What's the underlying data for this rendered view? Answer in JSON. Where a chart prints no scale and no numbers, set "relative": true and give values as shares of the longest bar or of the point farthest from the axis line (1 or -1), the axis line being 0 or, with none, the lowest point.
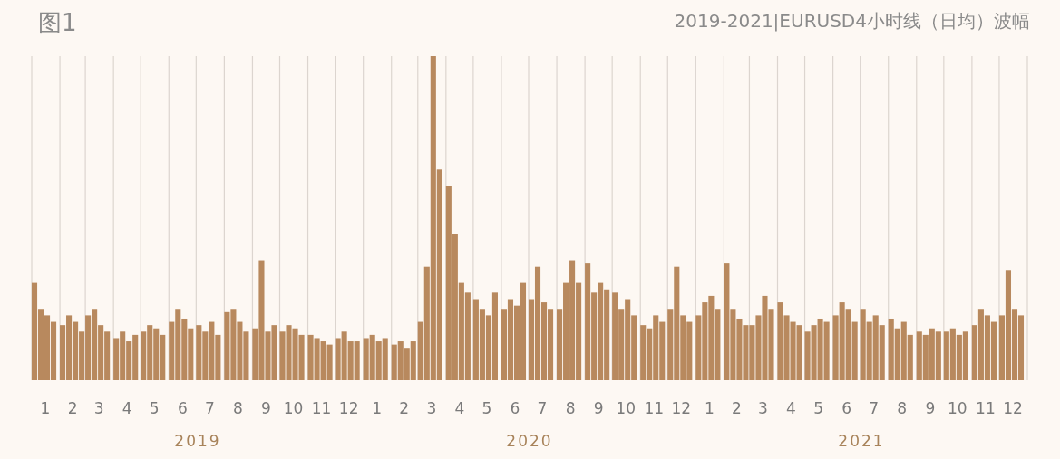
{
  "chart_data": {
    "type": "bar",
    "relative": true,
    "grid": "x",
    "color": "#b8895e",
    "title": "图1",
    "subtitle": "2019-2021|EURUSD4小时线（日均）波幅",
    "x": [
      "2019-01-04",
      "2019-01-11",
      "2019-01-18",
      "2019-01-25",
      "2019-02-04",
      "2019-02-11",
      "2019-02-18",
      "2019-02-25",
      "2019-03-04",
      "2019-03-11",
      "2019-03-18",
      "2019-03-25",
      "2019-04-04",
      "2019-04-11",
      "2019-04-18",
      "2019-04-25",
      "2019-05-04",
      "2019-05-11",
      "2019-05-18",
      "2019-05-25",
      "2019-06-04",
      "2019-06-11",
      "2019-06-18",
      "2019-06-25",
      "2019-07-04",
      "2019-07-11",
      "2019-07-18",
      "2019-07-25",
      "2019-08-04",
      "2019-08-11",
      "2019-08-18",
      "2019-08-25",
      "2019-09-04",
      "2019-09-11",
      "2019-09-18",
      "2019-09-25",
      "2019-10-04",
      "2019-10-11",
      "2019-10-18",
      "2019-10-25",
      "2019-11-04",
      "2019-11-11",
      "2019-11-18",
      "2019-11-25",
      "2019-12-04",
      "2019-12-11",
      "2019-12-18",
      "2019-12-25",
      "2020-01-04",
      "2020-01-11",
      "2020-01-18",
      "2020-01-25",
      "2020-02-04",
      "2020-02-11",
      "2020-02-18",
      "2020-02-25",
      "2020-03-04",
      "2020-03-11",
      "2020-03-18",
      "2020-03-25",
      "2020-04-04",
      "2020-04-11",
      "2020-04-18",
      "2020-04-25",
      "2020-05-04",
      "2020-05-11",
      "2020-05-18",
      "2020-05-25",
      "2020-06-04",
      "2020-06-11",
      "2020-06-18",
      "2020-06-25",
      "2020-07-04",
      "2020-07-11",
      "2020-07-18",
      "2020-07-25",
      "2020-08-04",
      "2020-08-11",
      "2020-08-18",
      "2020-08-25",
      "2020-09-04",
      "2020-09-11",
      "2020-09-18",
      "2020-09-25",
      "2020-10-04",
      "2020-10-11",
      "2020-10-18",
      "2020-10-25",
      "2020-11-04",
      "2020-11-11",
      "2020-11-18",
      "2020-11-25",
      "2020-12-04",
      "2020-12-11",
      "2020-12-18",
      "2020-12-25",
      "2021-01-04",
      "2021-01-11",
      "2021-01-18",
      "2021-01-25",
      "2021-02-04",
      "2021-02-11",
      "2021-02-18",
      "2021-02-25",
      "2021-03-04",
      "2021-03-11",
      "2021-03-18",
      "2021-03-25",
      "2021-04-04",
      "2021-04-11",
      "2021-04-18",
      "2021-04-25",
      "2021-05-04",
      "2021-05-11",
      "2021-05-18",
      "2021-05-25",
      "2021-06-04",
      "2021-06-11",
      "2021-06-18",
      "2021-06-25",
      "2021-07-04",
      "2021-07-11",
      "2021-07-18",
      "2021-07-25",
      "2021-08-04",
      "2021-08-11",
      "2021-08-18",
      "2021-08-25",
      "2021-09-04",
      "2021-09-11",
      "2021-09-18",
      "2021-09-25",
      "2021-10-04",
      "2021-10-11",
      "2021-10-18",
      "2021-10-25",
      "2021-11-04",
      "2021-11-11",
      "2021-11-18",
      "2021-11-25",
      "2021-12-04",
      "2021-12-11",
      "2021-12-18",
      "2021-12-25"
    ],
    "values": [
      0.3,
      0.22,
      0.2,
      0.18,
      0.17,
      0.2,
      0.18,
      0.15,
      0.2,
      0.22,
      0.17,
      0.15,
      0.13,
      0.15,
      0.12,
      0.14,
      0.15,
      0.17,
      0.16,
      0.14,
      0.18,
      0.22,
      0.19,
      0.16,
      0.17,
      0.15,
      0.18,
      0.14,
      0.21,
      0.22,
      0.18,
      0.15,
      0.16,
      0.37,
      0.15,
      0.17,
      0.15,
      0.17,
      0.16,
      0.14,
      0.14,
      0.13,
      0.12,
      0.11,
      0.13,
      0.15,
      0.12,
      0.12,
      0.13,
      0.14,
      0.12,
      0.13,
      0.11,
      0.12,
      0.1,
      0.12,
      0.18,
      0.35,
      1.0,
      0.65,
      0.6,
      0.45,
      0.3,
      0.27,
      0.25,
      0.22,
      0.2,
      0.27,
      0.22,
      0.25,
      0.23,
      0.3,
      0.25,
      0.35,
      0.24,
      0.22,
      0.22,
      0.3,
      0.37,
      0.3,
      0.36,
      0.27,
      0.3,
      0.28,
      0.27,
      0.22,
      0.25,
      0.2,
      0.17,
      0.16,
      0.2,
      0.18,
      0.22,
      0.35,
      0.2,
      0.18,
      0.2,
      0.24,
      0.26,
      0.22,
      0.36,
      0.22,
      0.19,
      0.17,
      0.17,
      0.2,
      0.26,
      0.22,
      0.24,
      0.2,
      0.18,
      0.17,
      0.15,
      0.17,
      0.19,
      0.18,
      0.2,
      0.24,
      0.22,
      0.18,
      0.22,
      0.18,
      0.2,
      0.17,
      0.19,
      0.16,
      0.18,
      0.14,
      0.15,
      0.14,
      0.16,
      0.15,
      0.15,
      0.16,
      0.14,
      0.15,
      0.17,
      0.22,
      0.2,
      0.18,
      0.2,
      0.34,
      0.22,
      0.2
    ],
    "xlim": [
      "2019-01-01",
      "2022-01-01"
    ],
    "xticks": [
      {
        "value": "2019-01-01",
        "label": null
      },
      {
        "value": "2019-01-16",
        "label": "1"
      },
      {
        "value": "2019-02-01",
        "label": null
      },
      {
        "value": "2019-02-15",
        "label": "2"
      },
      {
        "value": "2019-03-01",
        "label": null
      },
      {
        "value": "2019-03-16",
        "label": "3"
      },
      {
        "value": "2019-04-01",
        "label": null
      },
      {
        "value": "2019-04-16",
        "label": "4"
      },
      {
        "value": "2019-05-01",
        "label": null
      },
      {
        "value": "2019-05-16",
        "label": "5"
      },
      {
        "value": "2019-06-01",
        "label": null
      },
      {
        "value": "2019-06-16",
        "label": "6"
      },
      {
        "value": "2019-07-01",
        "label": null
      },
      {
        "value": "2019-07-16",
        "label": "7"
      },
      {
        "value": "2019-08-01",
        "label": null
      },
      {
        "value": "2019-08-16",
        "label": "8"
      },
      {
        "value": "2019-09-01",
        "label": null
      },
      {
        "value": "2019-09-16",
        "label": "9"
      },
      {
        "value": "2019-10-01",
        "label": null
      },
      {
        "value": "2019-10-16",
        "label": "10"
      },
      {
        "value": "2019-11-01",
        "label": null
      },
      {
        "value": "2019-11-16",
        "label": "11"
      },
      {
        "value": "2019-12-01",
        "label": null
      },
      {
        "value": "2019-12-16",
        "label": "12"
      },
      {
        "value": "2020-01-01",
        "label": null
      },
      {
        "value": "2020-01-16",
        "label": "1"
      },
      {
        "value": "2020-02-01",
        "label": null
      },
      {
        "value": "2020-02-15",
        "label": "2"
      },
      {
        "value": "2020-03-01",
        "label": null
      },
      {
        "value": "2020-03-16",
        "label": "3"
      },
      {
        "value": "2020-04-01",
        "label": null
      },
      {
        "value": "2020-04-16",
        "label": "4"
      },
      {
        "value": "2020-05-01",
        "label": null
      },
      {
        "value": "2020-05-16",
        "label": "5"
      },
      {
        "value": "2020-06-01",
        "label": null
      },
      {
        "value": "2020-06-16",
        "label": "6"
      },
      {
        "value": "2020-07-01",
        "label": null
      },
      {
        "value": "2020-07-16",
        "label": "7"
      },
      {
        "value": "2020-08-01",
        "label": null
      },
      {
        "value": "2020-08-16",
        "label": "8"
      },
      {
        "value": "2020-09-01",
        "label": null
      },
      {
        "value": "2020-09-16",
        "label": "9"
      },
      {
        "value": "2020-10-01",
        "label": null
      },
      {
        "value": "2020-10-16",
        "label": "10"
      },
      {
        "value": "2020-11-01",
        "label": null
      },
      {
        "value": "2020-11-16",
        "label": "11"
      },
      {
        "value": "2020-12-01",
        "label": null
      },
      {
        "value": "2020-12-16",
        "label": "12"
      },
      {
        "value": "2021-01-01",
        "label": null
      },
      {
        "value": "2021-01-16",
        "label": "1"
      },
      {
        "value": "2021-02-01",
        "label": null
      },
      {
        "value": "2021-02-15",
        "label": "2"
      },
      {
        "value": "2021-03-01",
        "label": null
      },
      {
        "value": "2021-03-16",
        "label": "3"
      },
      {
        "value": "2021-04-01",
        "label": null
      },
      {
        "value": "2021-04-16",
        "label": "4"
      },
      {
        "value": "2021-05-01",
        "label": null
      },
      {
        "value": "2021-05-16",
        "label": "5"
      },
      {
        "value": "2021-06-01",
        "label": null
      },
      {
        "value": "2021-06-16",
        "label": "6"
      },
      {
        "value": "2021-07-01",
        "label": null
      },
      {
        "value": "2021-07-16",
        "label": "7"
      },
      {
        "value": "2021-08-01",
        "label": null
      },
      {
        "value": "2021-08-16",
        "label": "8"
      },
      {
        "value": "2021-09-01",
        "label": null
      },
      {
        "value": "2021-09-16",
        "label": "9"
      },
      {
        "value": "2021-10-01",
        "label": null
      },
      {
        "value": "2021-10-16",
        "label": "10"
      },
      {
        "value": "2021-11-01",
        "label": null
      },
      {
        "value": "2021-11-16",
        "label": "11"
      },
      {
        "value": "2021-12-01",
        "label": null
      },
      {
        "value": "2021-12-16",
        "label": "12"
      },
      {
        "value": "2022-01-01",
        "label": null
      }
    ],
    "annotations": [
      "2019",
      "2020",
      "2021"
    ]
  }
}
